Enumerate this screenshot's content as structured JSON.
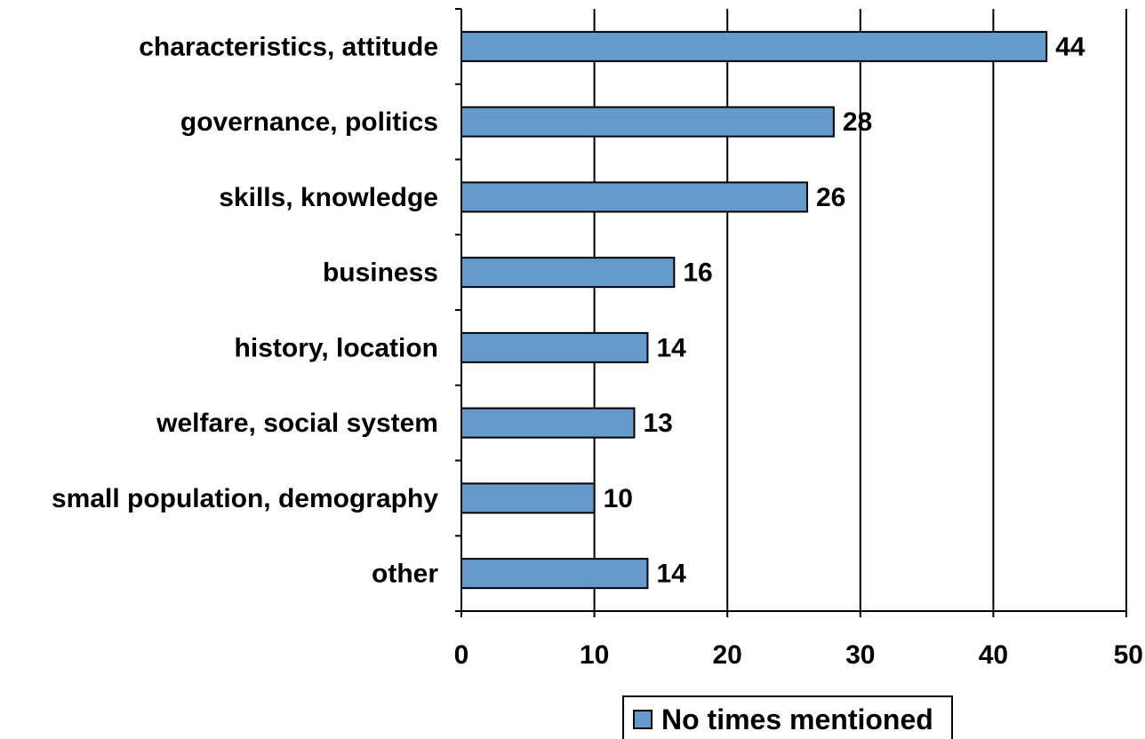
{
  "chart_data": {
    "type": "bar",
    "orientation": "horizontal",
    "categories": [
      "characteristics, attitude",
      "governance, politics",
      "skills, knowledge",
      "business",
      "history, location",
      "welfare, social system",
      "small population, demography",
      "other"
    ],
    "series": [
      {
        "name": "No times mentioned",
        "values": [
          44,
          28,
          26,
          16,
          14,
          13,
          10,
          14
        ],
        "color": "#6699cc"
      }
    ],
    "xlim": [
      0,
      50
    ],
    "xticks": [
      "0",
      "10",
      "20",
      "30",
      "40",
      "50"
    ],
    "title": "",
    "xlabel": "",
    "ylabel": "",
    "grid": "vertical",
    "legend_position": "bottom",
    "data_labels": true
  },
  "colors": {
    "bar_fill": "#6699cc",
    "bar_stroke": "#000000",
    "grid": "#000000"
  }
}
